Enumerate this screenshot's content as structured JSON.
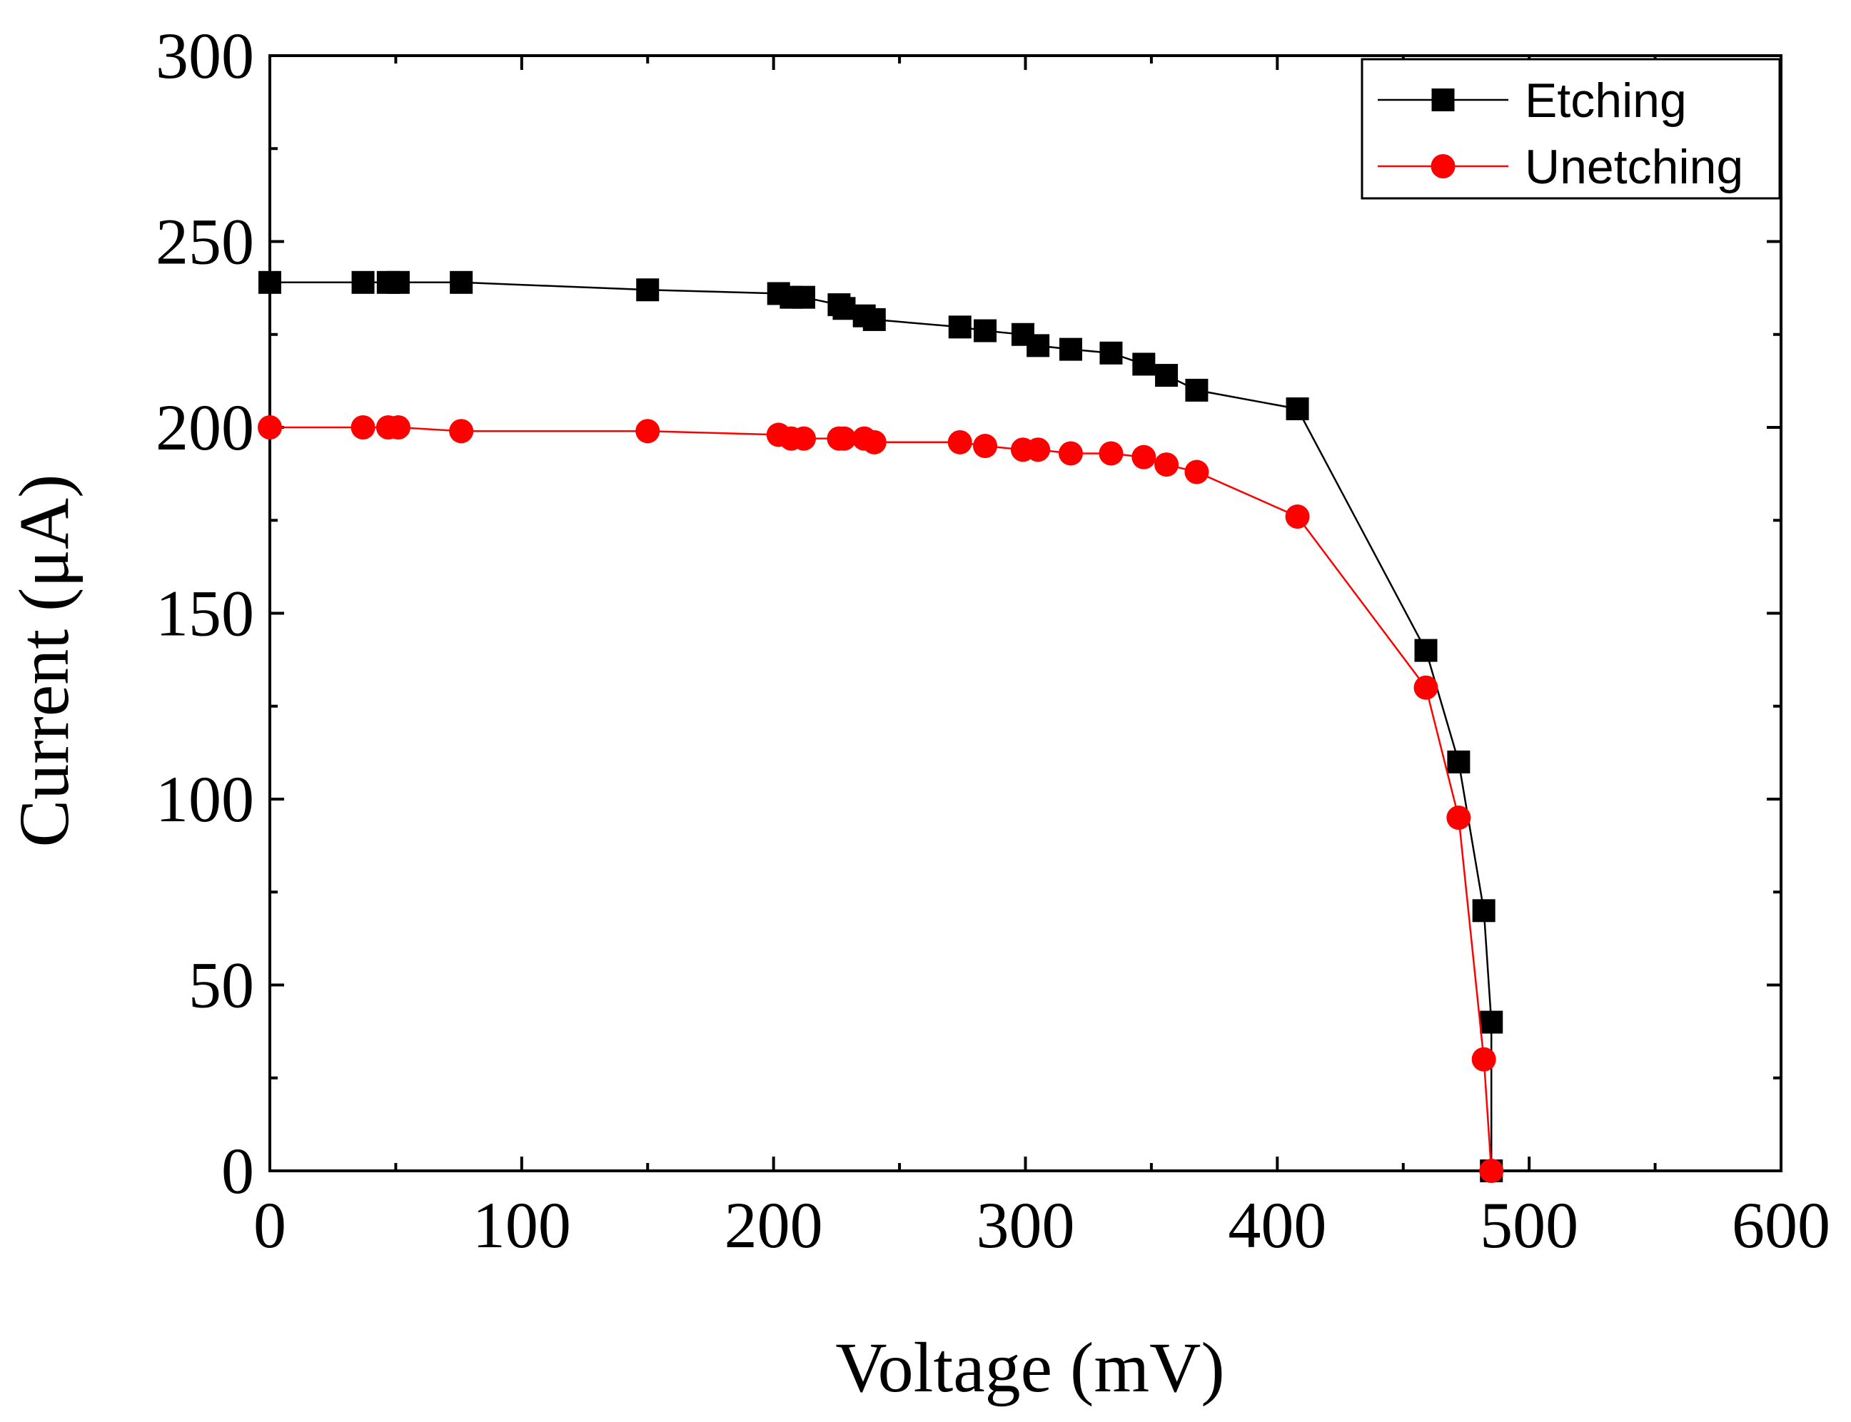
{
  "chart_data": {
    "type": "line",
    "title": "",
    "xlabel": "Voltage (mV)",
    "ylabel": "Current (μA)",
    "xlim": [
      0,
      600
    ],
    "ylim": [
      0,
      300
    ],
    "x_ticks": [
      0,
      100,
      200,
      300,
      400,
      500,
      600
    ],
    "y_ticks": [
      0,
      50,
      100,
      150,
      200,
      250,
      300
    ],
    "x_tick_labels": [
      "0",
      "100",
      "200",
      "300",
      "400",
      "500",
      "600"
    ],
    "y_tick_labels": [
      "0",
      "50",
      "100",
      "150",
      "200",
      "250",
      "300"
    ],
    "grid": false,
    "legend_position": "top-right",
    "series": [
      {
        "name": "Etching",
        "color": "#000000",
        "marker": "square",
        "x": [
          0,
          37,
          47,
          51,
          76,
          150,
          202,
          207,
          212,
          226,
          228,
          236,
          240,
          274,
          284,
          299,
          305,
          318,
          334,
          347,
          356,
          368,
          408,
          459,
          472,
          482,
          485,
          485
        ],
        "y": [
          239,
          239,
          239,
          239,
          239,
          237,
          236,
          235,
          235,
          233,
          232,
          230,
          229,
          227,
          226,
          225,
          222,
          221,
          220,
          217,
          214,
          210,
          205,
          140,
          110,
          70,
          40,
          0
        ]
      },
      {
        "name": "Unetching",
        "color": "#ff0000",
        "marker": "circle",
        "x": [
          0,
          37,
          47,
          51,
          76,
          150,
          202,
          207,
          212,
          226,
          228,
          236,
          240,
          274,
          284,
          299,
          305,
          318,
          334,
          347,
          356,
          368,
          408,
          459,
          472,
          482,
          485
        ],
        "y": [
          200,
          200,
          200,
          200,
          199,
          199,
          198,
          197,
          197,
          197,
          197,
          197,
          196,
          196,
          195,
          194,
          194,
          193,
          193,
          192,
          190,
          188,
          176,
          130,
          95,
          30,
          0
        ]
      }
    ]
  }
}
